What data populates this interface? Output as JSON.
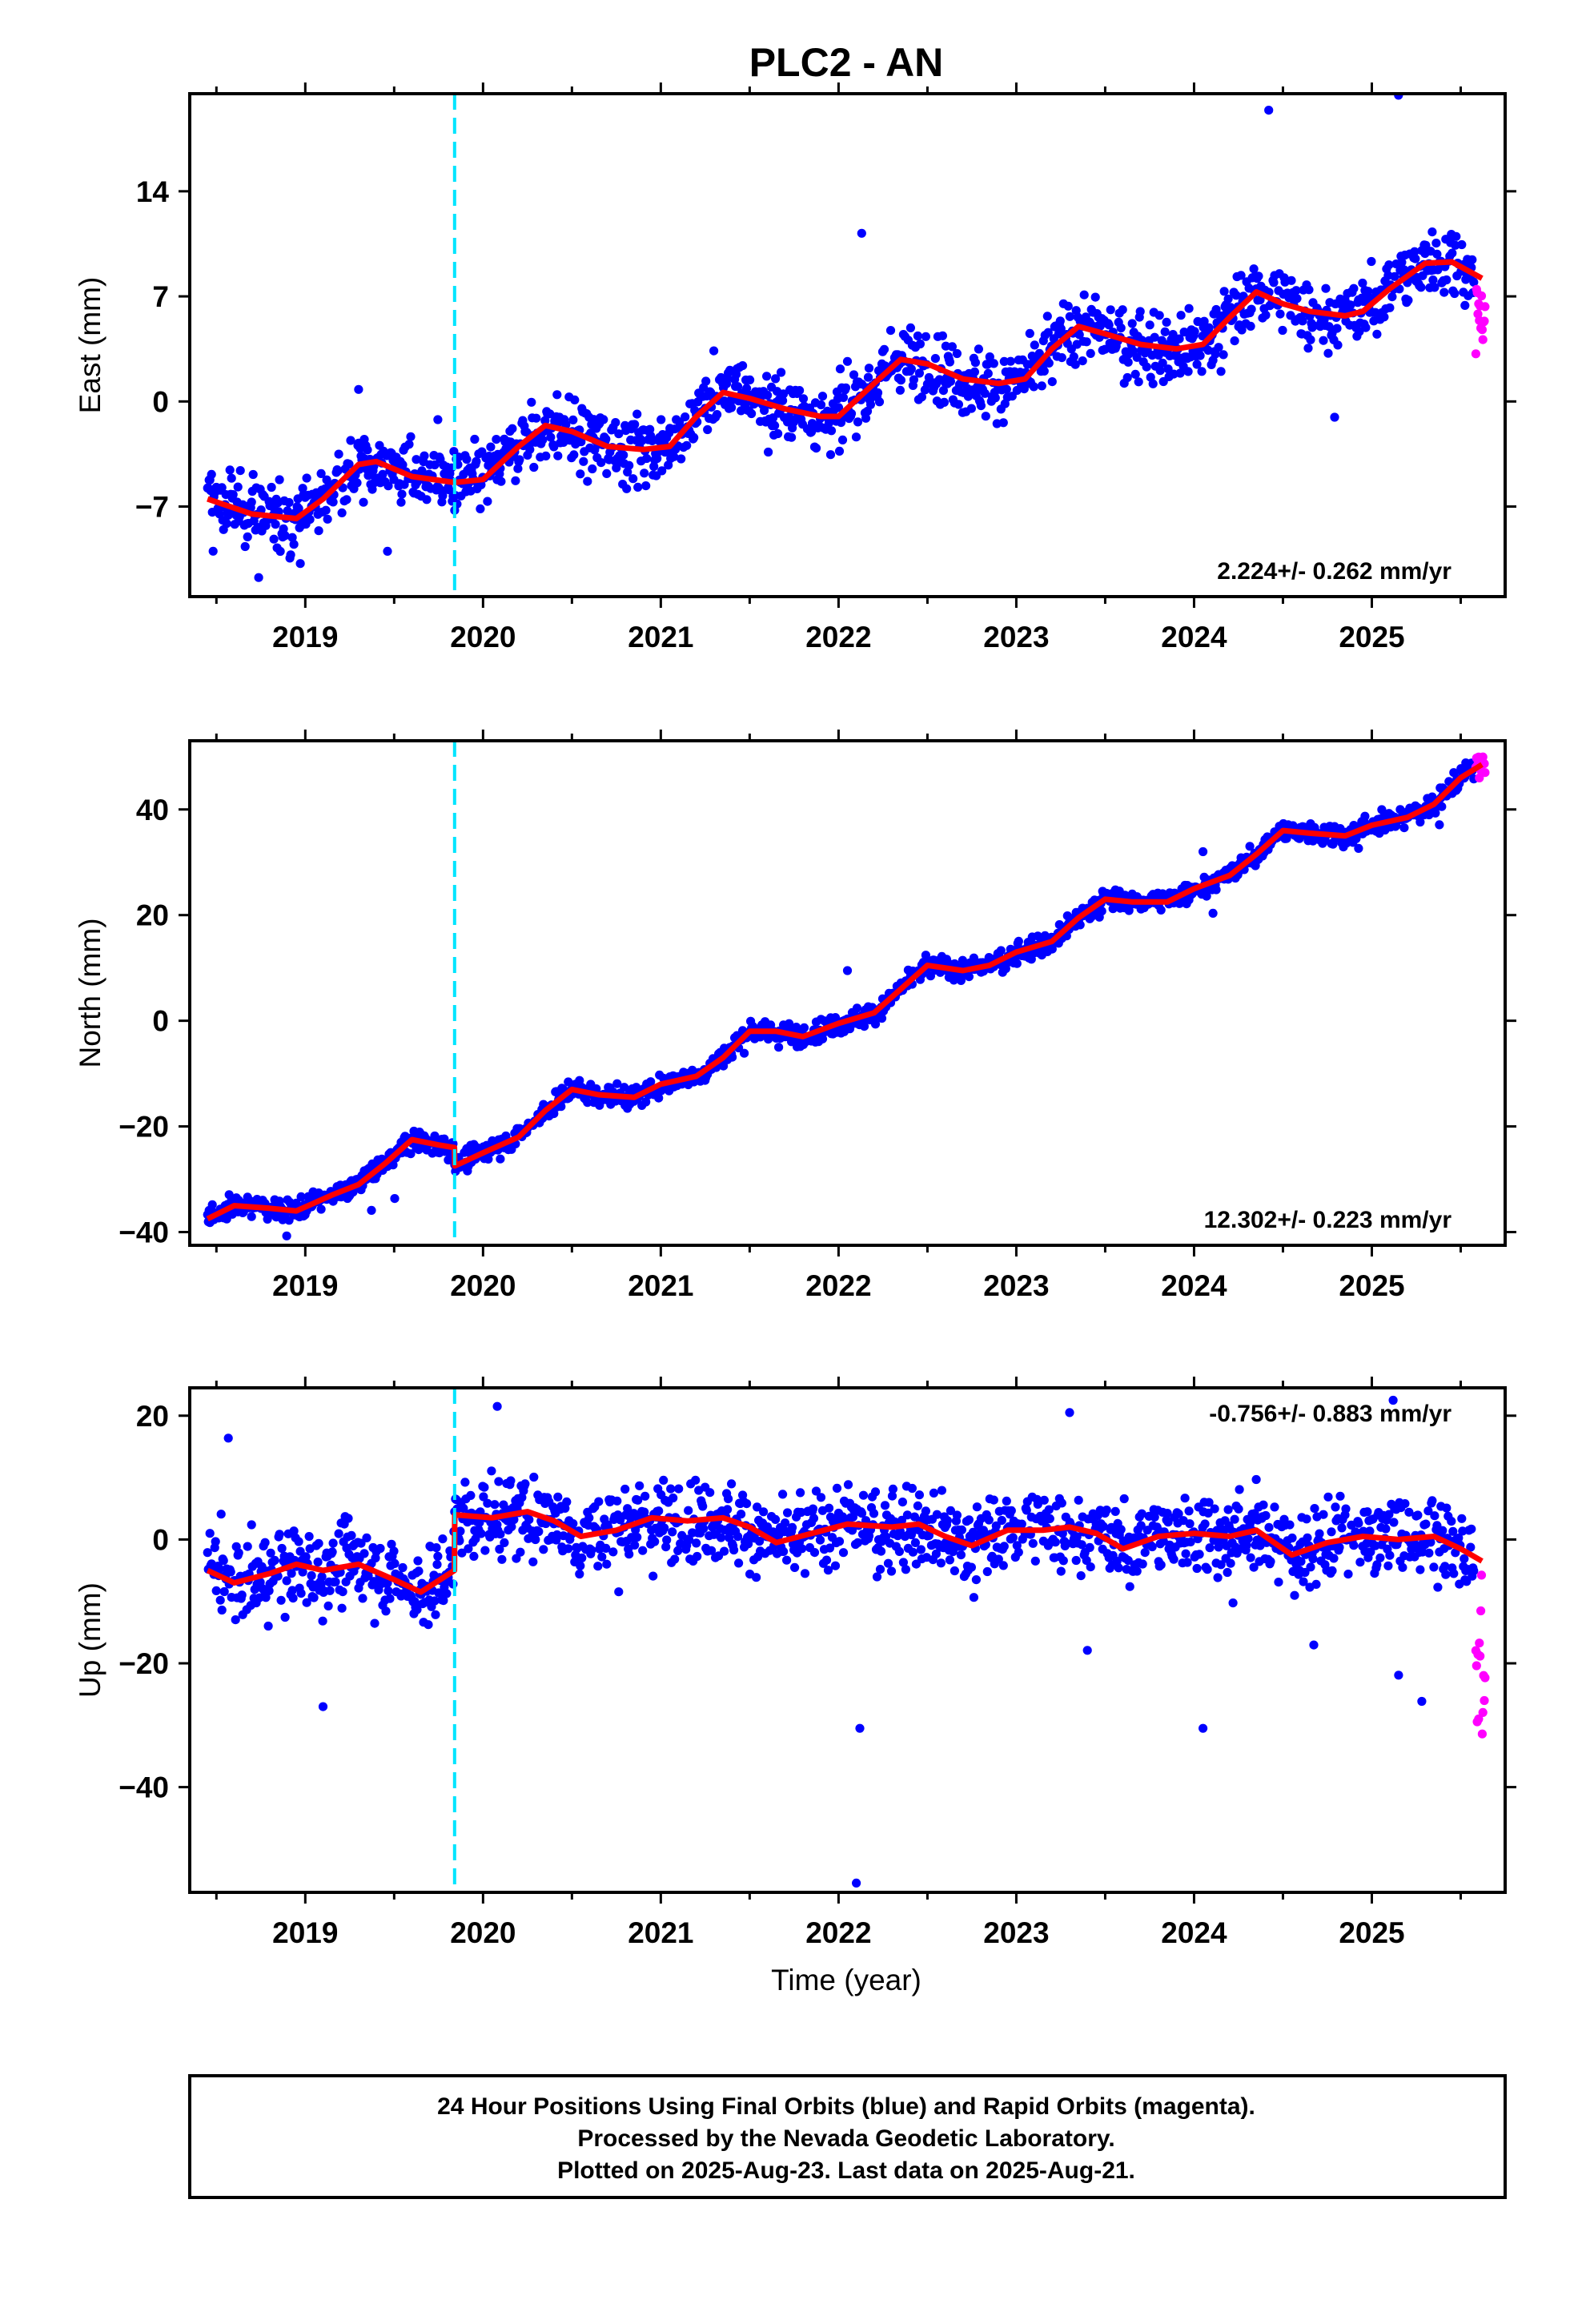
{
  "chart_data": {
    "type": "scatter",
    "title": "PLC2 - AN",
    "xlabel": "Time (year)",
    "x_tick_labels": [
      "2019",
      "2020",
      "2021",
      "2022",
      "2023",
      "2024",
      "2025"
    ],
    "xlim": [
      2018.35,
      2025.75
    ],
    "series_legend": [
      {
        "name": "Final Orbits",
        "color": "#0000ff"
      },
      {
        "name": "Rapid Orbits",
        "color": "#ff00ff"
      },
      {
        "name": "Model fit",
        "color": "#ff0000"
      }
    ],
    "marker": {
      "date": 2019.84,
      "color": "#00e5ff",
      "style": "dashed"
    },
    "panels": [
      {
        "id": "east",
        "ylabel": "East (mm)",
        "ylim": [
          -13,
          20.5
        ],
        "yticks": [
          -7,
          0,
          7,
          14
        ],
        "ytick_labels": [
          "−7",
          "0",
          "7",
          "14"
        ],
        "rate_label": "2.224+/- 0.262 mm/yr",
        "rate_position": "bottom-right",
        "fit": [
          [
            2018.45,
            -6.5
          ],
          [
            2018.7,
            -7.5
          ],
          [
            2018.95,
            -7.8
          ],
          [
            2019.1,
            -6.5
          ],
          [
            2019.3,
            -4.2
          ],
          [
            2019.4,
            -4.0
          ],
          [
            2019.6,
            -5.0
          ],
          [
            2019.84,
            -5.4
          ],
          [
            2020.0,
            -5.2
          ],
          [
            2020.2,
            -3.0
          ],
          [
            2020.35,
            -1.6
          ],
          [
            2020.5,
            -2.0
          ],
          [
            2020.7,
            -3.0
          ],
          [
            2020.9,
            -3.2
          ],
          [
            2021.05,
            -3.0
          ],
          [
            2021.2,
            -1.0
          ],
          [
            2021.35,
            0.6
          ],
          [
            2021.5,
            0.2
          ],
          [
            2021.7,
            -0.5
          ],
          [
            2021.9,
            -1.0
          ],
          [
            2022.0,
            -1.0
          ],
          [
            2022.2,
            1.2
          ],
          [
            2022.35,
            2.8
          ],
          [
            2022.5,
            2.5
          ],
          [
            2022.7,
            1.5
          ],
          [
            2022.9,
            1.2
          ],
          [
            2023.05,
            1.5
          ],
          [
            2023.2,
            3.5
          ],
          [
            2023.35,
            5.0
          ],
          [
            2023.5,
            4.5
          ],
          [
            2023.7,
            3.8
          ],
          [
            2023.9,
            3.5
          ],
          [
            2024.05,
            3.8
          ],
          [
            2024.2,
            5.6
          ],
          [
            2024.35,
            7.3
          ],
          [
            2024.5,
            6.5
          ],
          [
            2024.65,
            6.0
          ],
          [
            2024.85,
            5.7
          ],
          [
            2024.95,
            6.0
          ],
          [
            2025.1,
            7.5
          ],
          [
            2025.3,
            9.2
          ],
          [
            2025.45,
            9.3
          ],
          [
            2025.62,
            8.2
          ]
        ],
        "outliers": [
          [
            2024.42,
            19.4
          ],
          [
            2025.15,
            20.4
          ],
          [
            2022.13,
            11.2
          ],
          [
            2019.3,
            0.8
          ]
        ]
      },
      {
        "id": "north",
        "ylabel": "North (mm)",
        "ylim": [
          -42.5,
          53
        ],
        "yticks": [
          -40,
          -20,
          0,
          20,
          40
        ],
        "ytick_labels": [
          "−40",
          "−20",
          "0",
          "20",
          "40"
        ],
        "rate_label": "12.302+/- 0.223 mm/yr",
        "rate_position": "bottom-right",
        "fit": [
          [
            2018.45,
            -37.5
          ],
          [
            2018.6,
            -35.0
          ],
          [
            2018.8,
            -35.5
          ],
          [
            2018.95,
            -36.0
          ],
          [
            2019.15,
            -33.0
          ],
          [
            2019.3,
            -31.0
          ],
          [
            2019.45,
            -27.0
          ],
          [
            2019.6,
            -22.5
          ],
          [
            2019.75,
            -23.5
          ],
          [
            2019.839,
            -24.0
          ],
          [
            2019.841,
            -27.5
          ],
          [
            2020.0,
            -25.0
          ],
          [
            2020.2,
            -22.0
          ],
          [
            2020.35,
            -17.0
          ],
          [
            2020.5,
            -13.0
          ],
          [
            2020.65,
            -14.0
          ],
          [
            2020.85,
            -14.5
          ],
          [
            2021.0,
            -12.0
          ],
          [
            2021.2,
            -10.5
          ],
          [
            2021.35,
            -7.0
          ],
          [
            2021.5,
            -2.0
          ],
          [
            2021.65,
            -2.0
          ],
          [
            2021.8,
            -3.0
          ],
          [
            2022.0,
            -0.5
          ],
          [
            2022.2,
            1.5
          ],
          [
            2022.35,
            6.0
          ],
          [
            2022.5,
            10.5
          ],
          [
            2022.7,
            9.5
          ],
          [
            2022.85,
            10.5
          ],
          [
            2023.0,
            13.0
          ],
          [
            2023.2,
            15.0
          ],
          [
            2023.35,
            19.5
          ],
          [
            2023.5,
            23.0
          ],
          [
            2023.65,
            22.5
          ],
          [
            2023.85,
            22.5
          ],
          [
            2024.0,
            25.0
          ],
          [
            2024.2,
            27.5
          ],
          [
            2024.35,
            31.5
          ],
          [
            2024.5,
            36.0
          ],
          [
            2024.65,
            35.5
          ],
          [
            2024.85,
            35.0
          ],
          [
            2025.0,
            37.0
          ],
          [
            2025.2,
            38.5
          ],
          [
            2025.35,
            41.0
          ],
          [
            2025.5,
            46.0
          ],
          [
            2025.62,
            48.5
          ]
        ],
        "outliers": [
          [
            2022.05,
            9.5
          ],
          [
            2024.05,
            32.0
          ]
        ]
      },
      {
        "id": "up",
        "ylabel": "Up (mm)",
        "ylim": [
          -57,
          24.5
        ],
        "yticks": [
          -40,
          -20,
          0,
          20
        ],
        "ytick_labels": [
          "−40",
          "−20",
          "0",
          "20"
        ],
        "rate_label": "-0.756+/- 0.883 mm/yr",
        "rate_position": "top-right",
        "fit": [
          [
            2018.45,
            -5.0
          ],
          [
            2018.6,
            -7.0
          ],
          [
            2018.8,
            -5.5
          ],
          [
            2018.95,
            -4.0
          ],
          [
            2019.1,
            -5.0
          ],
          [
            2019.3,
            -4.0
          ],
          [
            2019.5,
            -6.5
          ],
          [
            2019.65,
            -8.5
          ],
          [
            2019.839,
            -5.0
          ],
          [
            2019.841,
            4.0
          ],
          [
            2020.05,
            3.5
          ],
          [
            2020.25,
            4.5
          ],
          [
            2020.4,
            3.0
          ],
          [
            2020.55,
            0.5
          ],
          [
            2020.75,
            1.5
          ],
          [
            2020.95,
            3.5
          ],
          [
            2021.15,
            3.0
          ],
          [
            2021.35,
            3.5
          ],
          [
            2021.5,
            2.0
          ],
          [
            2021.65,
            -0.5
          ],
          [
            2021.85,
            1.0
          ],
          [
            2022.05,
            2.5
          ],
          [
            2022.3,
            2.0
          ],
          [
            2022.45,
            2.5
          ],
          [
            2022.6,
            0.5
          ],
          [
            2022.75,
            -1.0
          ],
          [
            2022.95,
            1.5
          ],
          [
            2023.15,
            1.5
          ],
          [
            2023.3,
            2.0
          ],
          [
            2023.45,
            1.0
          ],
          [
            2023.6,
            -1.5
          ],
          [
            2023.8,
            0.5
          ],
          [
            2024.0,
            1.0
          ],
          [
            2024.2,
            0.5
          ],
          [
            2024.35,
            1.5
          ],
          [
            2024.55,
            -2.5
          ],
          [
            2024.75,
            -0.5
          ],
          [
            2024.95,
            0.5
          ],
          [
            2025.15,
            0.0
          ],
          [
            2025.35,
            0.5
          ],
          [
            2025.5,
            -1.5
          ],
          [
            2025.62,
            -3.5
          ]
        ],
        "outliers": [
          [
            2022.1,
            -55.5
          ],
          [
            2019.1,
            -27.0
          ],
          [
            2022.12,
            -30.5
          ],
          [
            2024.05,
            -30.5
          ],
          [
            2025.12,
            22.5
          ],
          [
            2020.08,
            21.5
          ],
          [
            2023.3,
            20.5
          ]
        ]
      }
    ],
    "caption": [
      "24 Hour Positions Using Final Orbits (blue) and Rapid Orbits (magenta).",
      "Processed by the Nevada Geodetic Laboratory.",
      "Plotted on 2025-Aug-23. Last data on 2025-Aug-21."
    ]
  }
}
